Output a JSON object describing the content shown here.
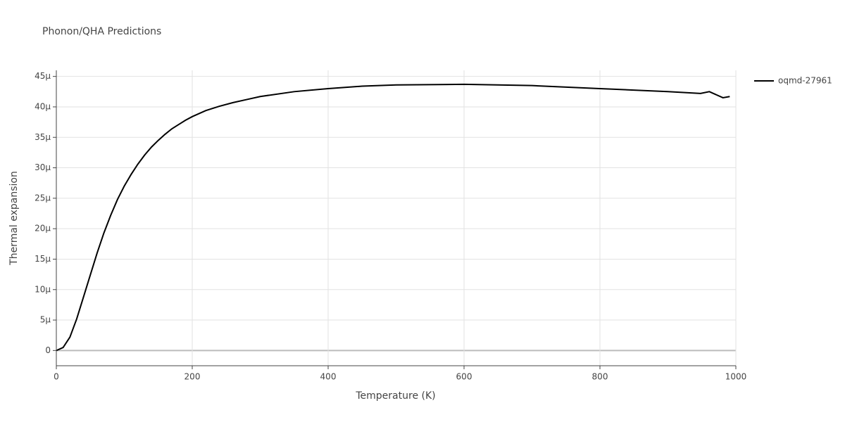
{
  "chart_data": {
    "type": "line",
    "title": "Phonon/QHA Predictions",
    "x_label": "Temperature (K)",
    "y_label": "Thermal expansion",
    "x": [
      0,
      10,
      20,
      30,
      40,
      50,
      60,
      70,
      80,
      90,
      100,
      110,
      120,
      130,
      140,
      150,
      160,
      170,
      180,
      190,
      200,
      220,
      240,
      260,
      280,
      300,
      350,
      400,
      450,
      500,
      600,
      700,
      800,
      900,
      948,
      961,
      981,
      991
    ],
    "series": [
      {
        "name": "oqmd-27961",
        "color": "#000000",
        "values": [
          0,
          5e-07,
          2.2e-06,
          5.2e-06,
          8.8e-06,
          1.24e-05,
          1.6e-05,
          1.93e-05,
          2.22e-05,
          2.48e-05,
          2.7e-05,
          2.89e-05,
          3.06e-05,
          3.21e-05,
          3.34e-05,
          3.45e-05,
          3.55e-05,
          3.64e-05,
          3.71e-05,
          3.78e-05,
          3.84e-05,
          3.94e-05,
          4.01e-05,
          4.07e-05,
          4.12e-05,
          4.17e-05,
          4.25e-05,
          4.3e-05,
          4.34e-05,
          4.36e-05,
          4.37e-05,
          4.35e-05,
          4.3e-05,
          4.25e-05,
          4.22e-05,
          4.25e-05,
          4.15e-05,
          4.17e-05
        ]
      }
    ],
    "xlim": [
      0,
      1000
    ],
    "xticks": [
      0,
      200,
      400,
      600,
      800,
      1000
    ],
    "ylim": [
      -2.5e-06,
      4.6e-05
    ],
    "yticks": [
      0,
      {
        "value": 5e-06,
        "label": "5μ"
      },
      {
        "value": 1e-05,
        "label": "10μ"
      },
      {
        "value": 1.5e-05,
        "label": "15μ"
      },
      {
        "value": 2e-05,
        "label": "20μ"
      },
      {
        "value": 2.5e-05,
        "label": "25μ"
      },
      {
        "value": 3e-05,
        "label": "30μ"
      },
      {
        "value": 3.5e-05,
        "label": "35μ"
      },
      {
        "value": 4e-05,
        "label": "40μ"
      },
      {
        "value": 4.5e-05,
        "label": "45μ"
      }
    ],
    "grid": true,
    "legend": "right"
  }
}
